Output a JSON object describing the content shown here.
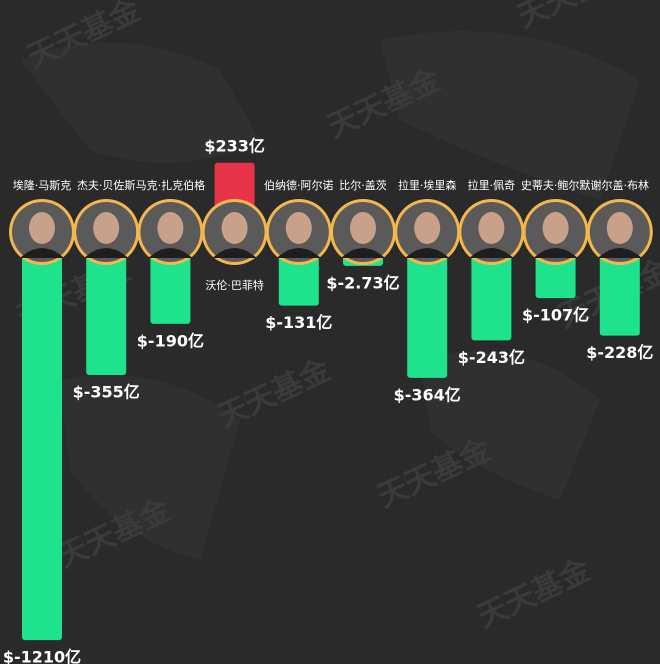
{
  "chart_data": {
    "type": "bar",
    "watermark": "天天基金",
    "categories": [
      "埃隆·马斯克",
      "杰夫·贝佐斯",
      "马克·扎克伯格",
      "沃伦·巴菲特",
      "伯纳德·阿尔诺",
      "比尔·盖茨",
      "拉里·埃里森",
      "拉里·佩奇",
      "史蒂夫·鲍尔默",
      "谢尔盖·布林"
    ],
    "values": [
      -1210,
      -355,
      -190,
      233,
      -131,
      -2.73,
      -364,
      -243,
      -107,
      -228
    ],
    "value_labels": [
      "$-1210亿",
      "$-355亿",
      "$-190亿",
      "$233亿",
      "$-131亿",
      "$-2.73亿",
      "$-364亿",
      "$-243亿",
      "$-107亿",
      "$-228亿"
    ],
    "positive_color": "#e8344a",
    "negative_color": "#1ee28c"
  }
}
